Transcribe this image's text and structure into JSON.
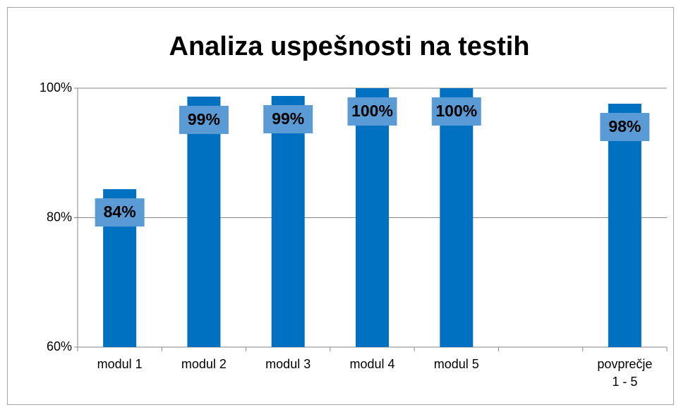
{
  "chart_data": {
    "type": "bar",
    "title": "Analiza uspešnosti na testih",
    "categories": [
      "modul 1",
      "modul 2",
      "modul 3",
      "modul 4",
      "modul 5",
      null,
      "povprečje 1 - 5"
    ],
    "values": [
      84.4,
      98.7,
      98.8,
      100,
      100,
      null,
      97.6
    ],
    "value_labels": [
      "84%",
      "99%",
      "99%",
      "100%",
      "100%",
      null,
      "98%"
    ],
    "color": "#0070c0",
    "ylim": [
      60,
      100
    ],
    "yticks": [
      {
        "value": 60,
        "label": "60%"
      },
      {
        "value": 80,
        "label": "80%"
      },
      {
        "value": 100,
        "label": "100%"
      }
    ],
    "grid": true
  }
}
